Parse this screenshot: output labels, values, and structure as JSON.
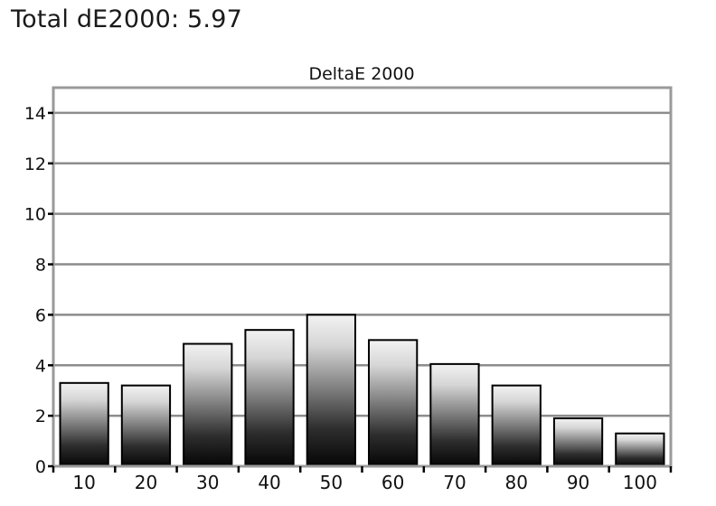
{
  "heading": "Total dE2000: 5.97",
  "chart_data": {
    "type": "bar",
    "title": "DeltaE 2000",
    "xlabel": "",
    "ylabel": "",
    "categories": [
      "10",
      "20",
      "30",
      "40",
      "50",
      "60",
      "70",
      "80",
      "90",
      "100"
    ],
    "values": [
      3.3,
      3.2,
      4.85,
      5.4,
      6.0,
      5.0,
      4.05,
      3.2,
      1.9,
      1.3
    ],
    "ylim": [
      0,
      15
    ],
    "yticks": [
      0,
      2,
      4,
      6,
      8,
      10,
      12,
      14
    ],
    "grid": true,
    "legend": "none",
    "bar_style": "vertical gradient, dark at base to light at top"
  }
}
